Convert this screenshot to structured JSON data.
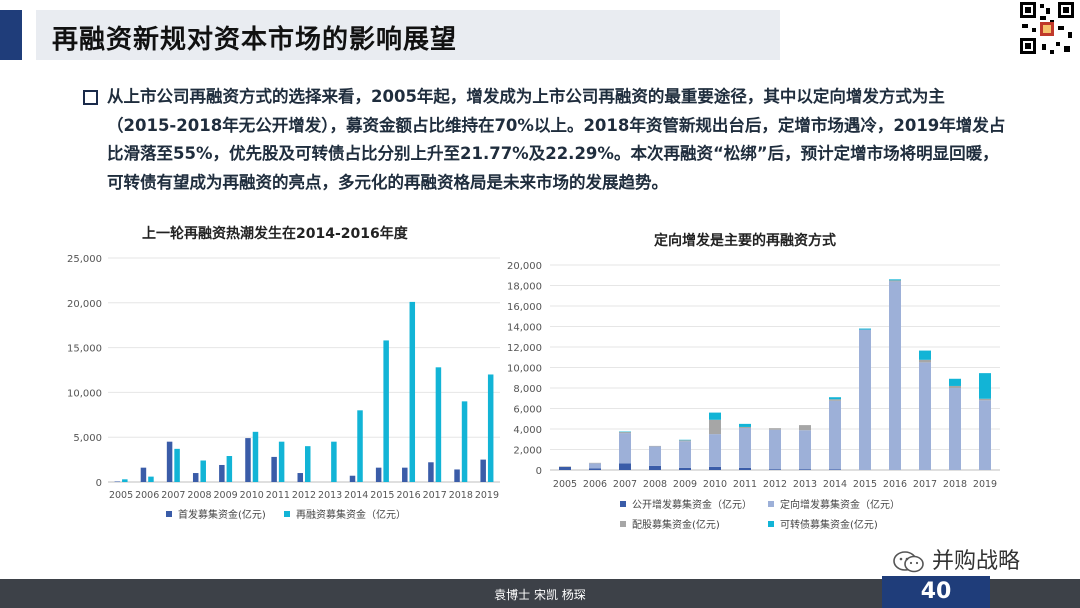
{
  "header": {
    "title": "再融资新规对资本市场的影响展望"
  },
  "paragraph": "从上市公司再融资方式的选择来看，2005年起，增发成为上市公司再融资的最重要途径，其中以定向增发方式为主（2015-2018年无公开增发），募资金额占比维持在70%以上。2018年资管新规出台后，定增市场遇冷，2019年增发占比滑落至55%，优先股及可转债占比分别上升至21.77%及22.29%。本次再融资“松绑”后，预计定增市场将明显回暖，可转债有望成为再融资的亮点，多元化的再融资格局是未来市场的发展趋势。",
  "footer": {
    "authors": "袁博士 宋凯 杨琛",
    "page_number": "40",
    "watermark": "并购战略"
  },
  "colors": {
    "dark_blue": "#3a5ca8",
    "cyan": "#12b4d6",
    "light_blue": "#9db0d8",
    "gray": "#a6a6a6",
    "navy": "#1f3d7a"
  },
  "chart_data": [
    {
      "type": "bar",
      "title": "上一轮再融资热潮发生在2014-2016年度",
      "categories": [
        "2005",
        "2006",
        "2007",
        "2008",
        "2009",
        "2010",
        "2011",
        "2012",
        "2013",
        "2014",
        "2015",
        "2016",
        "2017",
        "2018",
        "2019"
      ],
      "series": [
        {
          "name": "首发募集资金(亿元)",
          "color": "#3a5ca8",
          "values": [
            60,
            1600,
            4500,
            1000,
            1900,
            4900,
            2800,
            1000,
            0,
            700,
            1600,
            1600,
            2200,
            1400,
            2500
          ]
        },
        {
          "name": "再融资募集资金（亿元）",
          "color": "#12b4d6",
          "values": [
            300,
            600,
            3700,
            2400,
            2900,
            5600,
            4500,
            4000,
            4500,
            8000,
            15800,
            20100,
            12800,
            9000,
            12000
          ]
        }
      ],
      "yticks": [
        "0",
        "5,000",
        "10,000",
        "15,000",
        "20,000",
        "25,000"
      ],
      "ylim": [
        0,
        25000
      ],
      "legend": "bottom"
    },
    {
      "type": "bar",
      "stacked": true,
      "title": "定向增发是主要的再融资方式",
      "categories": [
        "2005",
        "2006",
        "2007",
        "2008",
        "2009",
        "2010",
        "2011",
        "2012",
        "2013",
        "2014",
        "2015",
        "2016",
        "2017",
        "2018",
        "2019"
      ],
      "series": [
        {
          "name": "公开增发募集资金（亿元）",
          "color": "#3a5ca8",
          "values": [
            300,
            150,
            650,
            400,
            200,
            300,
            200,
            80,
            80,
            50,
            0,
            0,
            0,
            0,
            0
          ]
        },
        {
          "name": "定向增发募集资金（亿元）",
          "color": "#9db0d8",
          "values": [
            0,
            500,
            2950,
            1900,
            2600,
            3200,
            3900,
            3850,
            3800,
            6700,
            13700,
            18400,
            10500,
            8000,
            6800
          ]
        },
        {
          "name": "配股募集资金(亿元)",
          "color": "#a6a6a6",
          "values": [
            50,
            50,
            100,
            50,
            100,
            1400,
            100,
            150,
            500,
            150,
            0,
            100,
            250,
            200,
            150
          ]
        },
        {
          "name": "可转债募集资金(亿元)",
          "color": "#12b4d6",
          "values": [
            0,
            0,
            50,
            0,
            50,
            700,
            300,
            0,
            0,
            200,
            100,
            100,
            900,
            700,
            2500
          ]
        }
      ],
      "yticks": [
        "0",
        "2,000",
        "4,000",
        "6,000",
        "8,000",
        "10,000",
        "12,000",
        "14,000",
        "16,000",
        "18,000",
        "20,000"
      ],
      "ylim": [
        0,
        20000
      ],
      "legend": "bottom"
    }
  ]
}
